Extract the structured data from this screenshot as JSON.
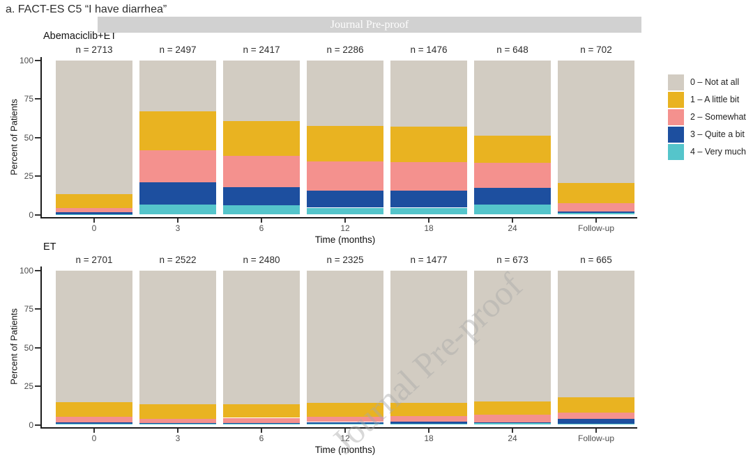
{
  "page_title": "a. FACT-ES C5 “I have diarrhea”",
  "watermark": {
    "banner_text": "Journal Pre-proof",
    "diagonal_text": "Journal Pre-proof"
  },
  "legend": {
    "position": "right",
    "items": [
      {
        "label": "0 – Not at all",
        "color": "#d2ccc2"
      },
      {
        "label": "1 – A little bit",
        "color": "#e9b321"
      },
      {
        "label": "2 – Somewhat",
        "color": "#f4918e"
      },
      {
        "label": "3 – Quite a bit",
        "color": "#1d4f9f"
      },
      {
        "label": "4 – Very much",
        "color": "#55c5cb"
      }
    ]
  },
  "chart_data": [
    {
      "type": "bar",
      "stacked": true,
      "title": "Abemaciclib+ET",
      "categories": [
        "0",
        "3",
        "6",
        "12",
        "18",
        "24",
        "Follow-up"
      ],
      "n_labels": [
        "n = 2713",
        "n = 2497",
        "n = 2417",
        "n = 2286",
        "n = 1476",
        "n = 648",
        "n = 702"
      ],
      "xlabel": "Time (months)",
      "ylabel": "Percent of Patients",
      "ylim": [
        0,
        100
      ],
      "yticks": [
        0,
        25,
        50,
        75,
        100
      ],
      "grid": false,
      "series": [
        {
          "name": "0 - Not at all",
          "values": [
            86.6,
            33.0,
            39.5,
            42.5,
            43.0,
            49.0,
            79.5
          ]
        },
        {
          "name": "1 - A little bit",
          "values": [
            9.2,
            25.5,
            22.5,
            23.0,
            23.0,
            17.5,
            13.0
          ]
        },
        {
          "name": "2 - Somewhat",
          "values": [
            2.7,
            20.5,
            20.0,
            19.0,
            18.5,
            16.0,
            5.5
          ]
        },
        {
          "name": "3 - Quite a bit",
          "values": [
            1.2,
            14.5,
            12.0,
            11.0,
            11.0,
            11.0,
            1.0
          ]
        },
        {
          "name": "4 - Very much",
          "values": [
            0.3,
            6.5,
            6.0,
            4.5,
            4.5,
            6.5,
            1.0
          ]
        }
      ]
    },
    {
      "type": "bar",
      "stacked": true,
      "title": "ET",
      "categories": [
        "0",
        "3",
        "6",
        "12",
        "18",
        "24",
        "Follow-up"
      ],
      "n_labels": [
        "n = 2701",
        "n = 2522",
        "n = 2480",
        "n = 2325",
        "n = 1477",
        "n = 673",
        "n = 665"
      ],
      "xlabel": "Time (months)",
      "ylabel": "Percent of Patients",
      "ylim": [
        0,
        100
      ],
      "yticks": [
        0,
        25,
        50,
        75,
        100
      ],
      "grid": false,
      "series": [
        {
          "name": "0 - Not at all",
          "values": [
            85.5,
            86.5,
            86.5,
            86.0,
            86.0,
            85.0,
            82.0
          ]
        },
        {
          "name": "1 - A little bit",
          "values": [
            9.5,
            9.5,
            9.0,
            9.0,
            8.5,
            8.5,
            10.0
          ]
        },
        {
          "name": "2 - Somewhat",
          "values": [
            3.5,
            2.7,
            3.2,
            3.2,
            3.6,
            5.0,
            4.0
          ]
        },
        {
          "name": "3 - Quite a bit",
          "values": [
            1.0,
            0.8,
            0.8,
            1.1,
            1.0,
            0.5,
            3.5
          ]
        },
        {
          "name": "4 - Very much",
          "values": [
            0.5,
            0.5,
            0.5,
            0.7,
            0.9,
            1.0,
            0.5
          ]
        }
      ]
    }
  ]
}
